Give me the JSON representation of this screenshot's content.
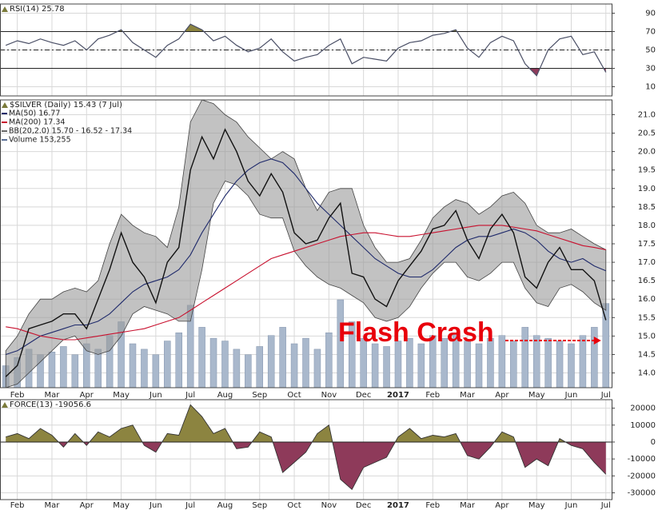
{
  "chart_data": [
    {
      "type": "line",
      "title": "RSI(14) 25.78",
      "color": "#4a4f66",
      "categories": [
        null,
        "Feb",
        null,
        null,
        "Mar",
        null,
        null,
        "Apr",
        null,
        null,
        "May",
        null,
        null,
        "Jun",
        null,
        null,
        "Jul",
        null,
        null,
        "Aug",
        null,
        null,
        "Sep",
        null,
        null,
        "Oct",
        null,
        null,
        "Nov",
        null,
        null,
        "Dec",
        null,
        null,
        "2017",
        null,
        null,
        "Feb",
        null,
        null,
        "Mar",
        null,
        null,
        "Apr",
        null,
        null,
        "May",
        null,
        null,
        "Jun",
        null,
        null,
        "Jul"
      ],
      "values": [
        55,
        60,
        57,
        62,
        58,
        55,
        60,
        50,
        62,
        66,
        72,
        58,
        50,
        42,
        55,
        62,
        78,
        72,
        60,
        65,
        55,
        48,
        52,
        62,
        48,
        38,
        42,
        45,
        55,
        62,
        35,
        42,
        40,
        38,
        52,
        58,
        60,
        66,
        68,
        72,
        52,
        42,
        58,
        65,
        60,
        35,
        22,
        50,
        62,
        65,
        45,
        48,
        25.78
      ],
      "ylim": [
        0,
        100
      ],
      "yticks": [
        10,
        30,
        50,
        70,
        90
      ],
      "upper_level": 70,
      "mid_level": 50,
      "lower_level": 30,
      "upper_color": "#8c8440",
      "lower_color": "#8e3a5a",
      "grid": true
    },
    {
      "type": "price",
      "title": "$SILVER (Daily) 15.43 (7 Jul)",
      "color": "#111111",
      "categories": [
        null,
        "Feb",
        null,
        null,
        "Mar",
        null,
        null,
        "Apr",
        null,
        null,
        "May",
        null,
        null,
        "Jun",
        null,
        null,
        "Jul",
        null,
        null,
        "Aug",
        null,
        null,
        "Sep",
        null,
        null,
        "Oct",
        null,
        null,
        "Nov",
        null,
        null,
        "Dec",
        null,
        null,
        "2017",
        null,
        null,
        "Feb",
        null,
        null,
        "Mar",
        null,
        null,
        "Apr",
        null,
        null,
        "May",
        null,
        null,
        "Jun",
        null,
        null,
        "Jul"
      ],
      "values": [
        13.9,
        14.2,
        15.2,
        15.3,
        15.4,
        15.6,
        15.6,
        15.2,
        16.0,
        16.8,
        17.8,
        17.0,
        16.6,
        15.9,
        17.0,
        17.4,
        19.5,
        20.4,
        19.8,
        20.6,
        20.0,
        19.2,
        18.8,
        19.4,
        18.9,
        17.8,
        17.5,
        17.6,
        18.2,
        18.6,
        16.7,
        16.6,
        16.0,
        15.8,
        16.5,
        16.9,
        17.3,
        17.9,
        18.0,
        18.4,
        17.6,
        17.1,
        17.9,
        18.3,
        17.8,
        16.6,
        16.3,
        17.0,
        17.4,
        16.8,
        16.8,
        16.5,
        15.43
      ],
      "series": [
        {
          "name": "MA(50) 16.77",
          "color": "#1f2a6b",
          "values": [
            14.5,
            14.6,
            14.8,
            15.0,
            15.1,
            15.2,
            15.3,
            15.3,
            15.4,
            15.6,
            15.9,
            16.2,
            16.4,
            16.5,
            16.6,
            16.8,
            17.2,
            17.8,
            18.3,
            18.8,
            19.2,
            19.5,
            19.7,
            19.8,
            19.7,
            19.4,
            19.0,
            18.6,
            18.3,
            18.0,
            17.7,
            17.4,
            17.1,
            16.9,
            16.7,
            16.6,
            16.6,
            16.8,
            17.1,
            17.4,
            17.6,
            17.7,
            17.7,
            17.8,
            17.9,
            17.8,
            17.6,
            17.3,
            17.1,
            17.0,
            17.1,
            16.9,
            16.77
          ]
        },
        {
          "name": "MA(200) 17.34",
          "color": "#c8102e",
          "values": [
            15.25,
            15.2,
            15.1,
            15.0,
            14.95,
            14.9,
            14.9,
            14.95,
            15.0,
            15.05,
            15.1,
            15.15,
            15.2,
            15.3,
            15.4,
            15.5,
            15.7,
            15.9,
            16.1,
            16.3,
            16.5,
            16.7,
            16.9,
            17.1,
            17.2,
            17.3,
            17.4,
            17.5,
            17.6,
            17.7,
            17.75,
            17.8,
            17.8,
            17.75,
            17.7,
            17.7,
            17.75,
            17.8,
            17.85,
            17.9,
            17.95,
            18.0,
            18.0,
            18.0,
            17.95,
            17.9,
            17.85,
            17.75,
            17.65,
            17.55,
            17.45,
            17.4,
            17.34
          ]
        }
      ],
      "bands": {
        "name": "BB(20,2.0) 15.70 - 16.52 - 17.34",
        "color": "#9a9a9a",
        "upper": [
          14.6,
          15.0,
          15.6,
          16.0,
          16.0,
          16.2,
          16.3,
          16.2,
          16.5,
          17.5,
          18.3,
          18.0,
          17.8,
          17.7,
          17.4,
          18.5,
          20.8,
          21.4,
          21.3,
          21.0,
          20.8,
          20.4,
          20.1,
          19.8,
          20.0,
          19.8,
          19.0,
          18.4,
          18.9,
          19.0,
          19.0,
          18.0,
          17.4,
          17.0,
          17.0,
          17.1,
          17.6,
          18.2,
          18.5,
          18.7,
          18.6,
          18.3,
          18.5,
          18.8,
          18.9,
          18.6,
          18.0,
          17.8,
          17.8,
          17.9,
          17.7,
          17.5,
          17.34
        ],
        "lower": [
          13.6,
          13.7,
          14.0,
          14.3,
          14.6,
          14.9,
          15.0,
          14.6,
          14.5,
          14.6,
          15.0,
          15.6,
          15.8,
          15.7,
          15.6,
          15.4,
          15.4,
          16.8,
          18.6,
          19.2,
          19.1,
          18.8,
          18.3,
          18.2,
          18.2,
          17.3,
          16.9,
          16.6,
          16.4,
          16.3,
          16.1,
          15.9,
          15.5,
          15.4,
          15.5,
          15.8,
          16.3,
          16.7,
          17.0,
          17.0,
          16.6,
          16.5,
          16.7,
          17.0,
          17.0,
          16.3,
          15.9,
          15.8,
          16.3,
          16.4,
          16.2,
          15.9,
          15.7
        ]
      },
      "volume": {
        "name": "Volume 153,255",
        "color": "#a9b8cc",
        "values": [
          40000,
          55000,
          70000,
          60000,
          65000,
          75000,
          60000,
          80000,
          70000,
          95000,
          120000,
          80000,
          70000,
          60000,
          85000,
          100000,
          150000,
          110000,
          90000,
          85000,
          70000,
          60000,
          75000,
          95000,
          110000,
          80000,
          90000,
          70000,
          100000,
          160000,
          120000,
          90000,
          80000,
          75000,
          85000,
          90000,
          80000,
          95000,
          90000,
          100000,
          85000,
          80000,
          90000,
          95000,
          85000,
          110000,
          95000,
          90000,
          85000,
          80000,
          95000,
          110000,
          153255
        ]
      },
      "annotation": "Flash Crash",
      "annotation_color": "#e8000b",
      "ylim": [
        13.6,
        21.4
      ],
      "yticks": [
        {
          "value": 14,
          "label": "14.0"
        },
        14.5,
        {
          "value": 15,
          "label": "15.0"
        },
        15.5,
        {
          "value": 16,
          "label": "16.0"
        },
        16.5,
        {
          "value": 17,
          "label": "17.0"
        },
        17.5,
        {
          "value": 18,
          "label": "18.0"
        },
        18.5,
        {
          "value": 19,
          "label": "19.0"
        },
        19.5,
        {
          "value": 20,
          "label": "20.0"
        },
        20.5,
        {
          "value": 21,
          "label": "21.0"
        }
      ],
      "grid": true
    },
    {
      "type": "area",
      "title": "FORCE(13) -19056.6",
      "color": "#333333",
      "pos_color": "#8c8440",
      "neg_color": "#8e3a5a",
      "categories": [
        null,
        "Feb",
        null,
        null,
        "Mar",
        null,
        null,
        "Apr",
        null,
        null,
        "May",
        null,
        null,
        "Jun",
        null,
        null,
        "Jul",
        null,
        null,
        "Aug",
        null,
        null,
        "Sep",
        null,
        null,
        "Oct",
        null,
        null,
        "Nov",
        null,
        null,
        "Dec",
        null,
        null,
        "2017",
        null,
        null,
        "Feb",
        null,
        null,
        "Mar",
        null,
        null,
        "Apr",
        null,
        null,
        "May",
        null,
        null,
        "Jun",
        null,
        null,
        "Jul"
      ],
      "values": [
        3000,
        5000,
        2000,
        8000,
        4000,
        -3000,
        5000,
        -2000,
        6000,
        3000,
        8000,
        10000,
        -2000,
        -6000,
        5000,
        4000,
        22000,
        15000,
        5000,
        8000,
        -4000,
        -3000,
        6000,
        3000,
        -18000,
        -12000,
        -6000,
        5000,
        10000,
        -22000,
        -28000,
        -15000,
        -12000,
        -9000,
        3000,
        8000,
        2000,
        4000,
        3000,
        5000,
        -8000,
        -10000,
        -3000,
        6000,
        3000,
        -15000,
        -10000,
        -14000,
        2000,
        -2000,
        -4000,
        -12000,
        -19056.6
      ],
      "ylim": [
        -34000,
        25000
      ],
      "yticks": [
        -30000,
        -20000,
        -10000,
        0,
        10000,
        20000
      ],
      "grid": true
    }
  ]
}
